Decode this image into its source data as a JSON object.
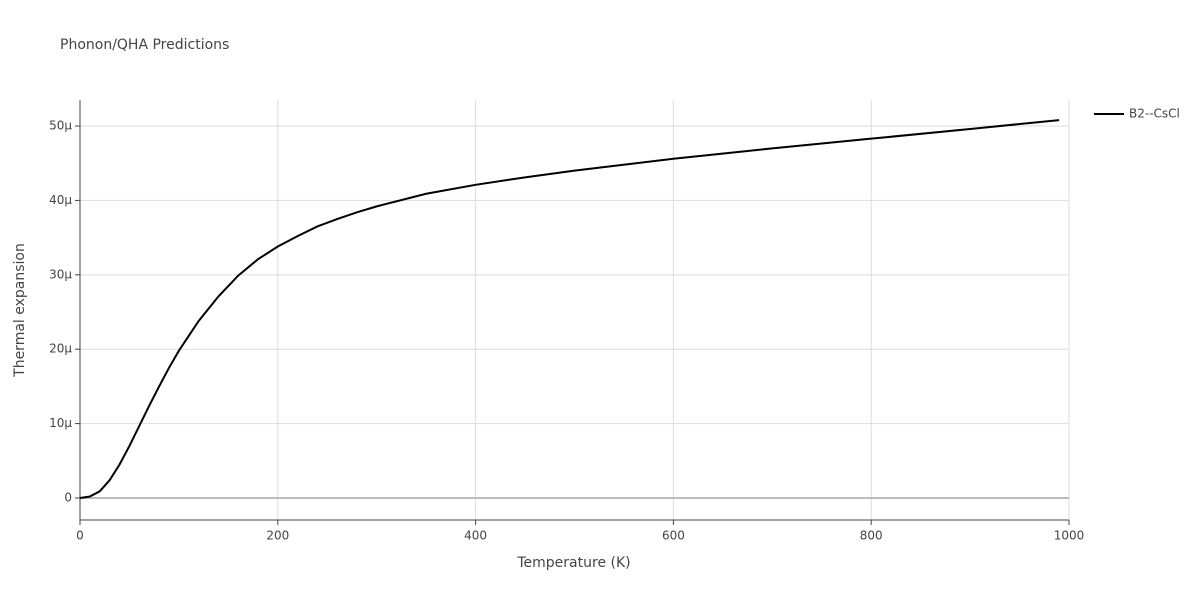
{
  "chart_data": {
    "type": "line",
    "title": "Phonon/QHA Predictions",
    "x_label": "Temperature (K)",
    "y_label": "Thermal expansion",
    "x": [
      0,
      10,
      20,
      30,
      40,
      50,
      60,
      70,
      80,
      90,
      100,
      120,
      140,
      160,
      180,
      200,
      220,
      240,
      260,
      280,
      300,
      350,
      400,
      450,
      500,
      600,
      700,
      800,
      900,
      990
    ],
    "series": [
      {
        "name": "B2--CsCl",
        "color": "#000000",
        "values": [
          0,
          2e-07,
          9e-07,
          2.4e-06,
          4.5e-06,
          7e-06,
          9.7e-06,
          1.24e-05,
          1.5e-05,
          1.75e-05,
          1.98e-05,
          2.38e-05,
          2.71e-05,
          2.99e-05,
          3.21e-05,
          3.38e-05,
          3.52e-05,
          3.65e-05,
          3.75e-05,
          3.84e-05,
          3.92e-05,
          4.09e-05,
          4.21e-05,
          4.31e-05,
          4.4e-05,
          4.56e-05,
          4.7e-05,
          4.83e-05,
          4.96e-05,
          5.08e-05
        ]
      }
    ],
    "xlim": [
      0,
      1000
    ],
    "xticks": [
      0,
      200,
      400,
      600,
      800,
      1000
    ],
    "ylim": [
      -2.96e-06,
      5.35e-05
    ],
    "yticks": [
      0,
      {
        "value": 1e-05,
        "label": "10μ"
      },
      {
        "value": 2e-05,
        "label": "20μ"
      },
      {
        "value": 3e-05,
        "label": "30μ"
      },
      {
        "value": 4e-05,
        "label": "40μ"
      },
      {
        "value": 5e-05,
        "label": "50μ"
      }
    ],
    "grid": true,
    "legend": "top-right"
  }
}
